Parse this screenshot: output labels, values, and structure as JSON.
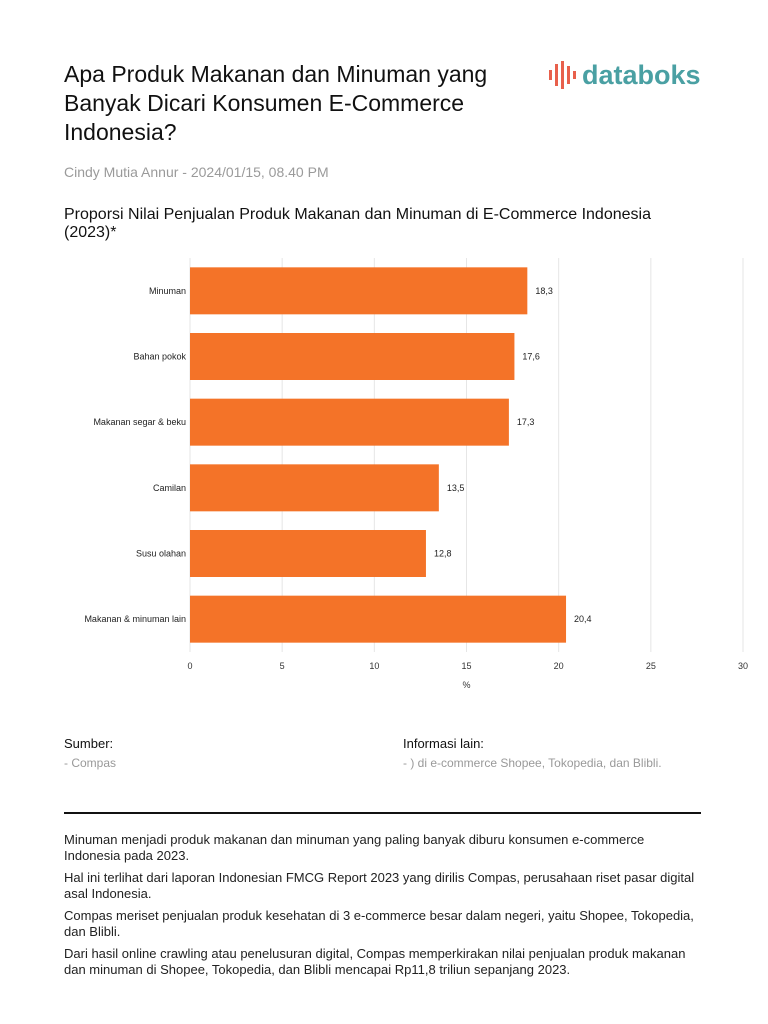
{
  "header": {
    "title": "Apa Produk Makanan dan Minuman yang Banyak Dicari Konsumen E-Commerce Indonesia?",
    "brand": "databoks",
    "byline": "Cindy Mutia Annur - 2024/01/15, 08.40 PM"
  },
  "colors": {
    "bar": "#f47328",
    "brand": "#4aa0a3",
    "brand_mark": "#e8604c"
  },
  "chart_data": {
    "type": "bar",
    "orientation": "horizontal",
    "title": "Proporsi Nilai Penjualan Produk Makanan dan Minuman di E-Commerce Indonesia (2023)*",
    "categories": [
      "Minuman",
      "Bahan pokok",
      "Makanan segar & beku",
      "Camilan",
      "Susu olahan",
      "Makanan & minuman lain"
    ],
    "values": [
      18.3,
      17.6,
      17.3,
      13.5,
      12.8,
      20.4
    ],
    "value_labels": [
      "18,3",
      "17,6",
      "17,3",
      "13,5",
      "12,8",
      "20,4"
    ],
    "xlim": [
      0,
      30
    ],
    "xticks": [
      0,
      5,
      10,
      15,
      20,
      25,
      30
    ],
    "xlabel": "%",
    "grid": true
  },
  "footer": {
    "source_label": "Sumber:",
    "source_value": "- Compas",
    "info_label": "Informasi lain:",
    "info_value": "- ) di e-commerce Shopee, Tokopedia, dan Blibli."
  },
  "article": {
    "paragraphs": [
      "Minuman menjadi produk makanan dan minuman yang paling banyak diburu konsumen e-commerce Indonesia pada 2023.",
      "Hal ini terlihat dari laporan Indonesian FMCG Report 2023 yang dirilis Compas, perusahaan riset pasar digital asal Indonesia.",
      "Compas meriset penjualan produk kesehatan di 3 e-commerce besar dalam negeri, yaitu Shopee, Tokopedia, dan Blibli.",
      "Dari hasil online crawling atau penelusuran digital, Compas memperkirakan nilai penjualan produk makanan dan minuman di Shopee, Tokopedia, dan Blibli mencapai Rp11,8 triliun sepanjang 2023."
    ]
  }
}
